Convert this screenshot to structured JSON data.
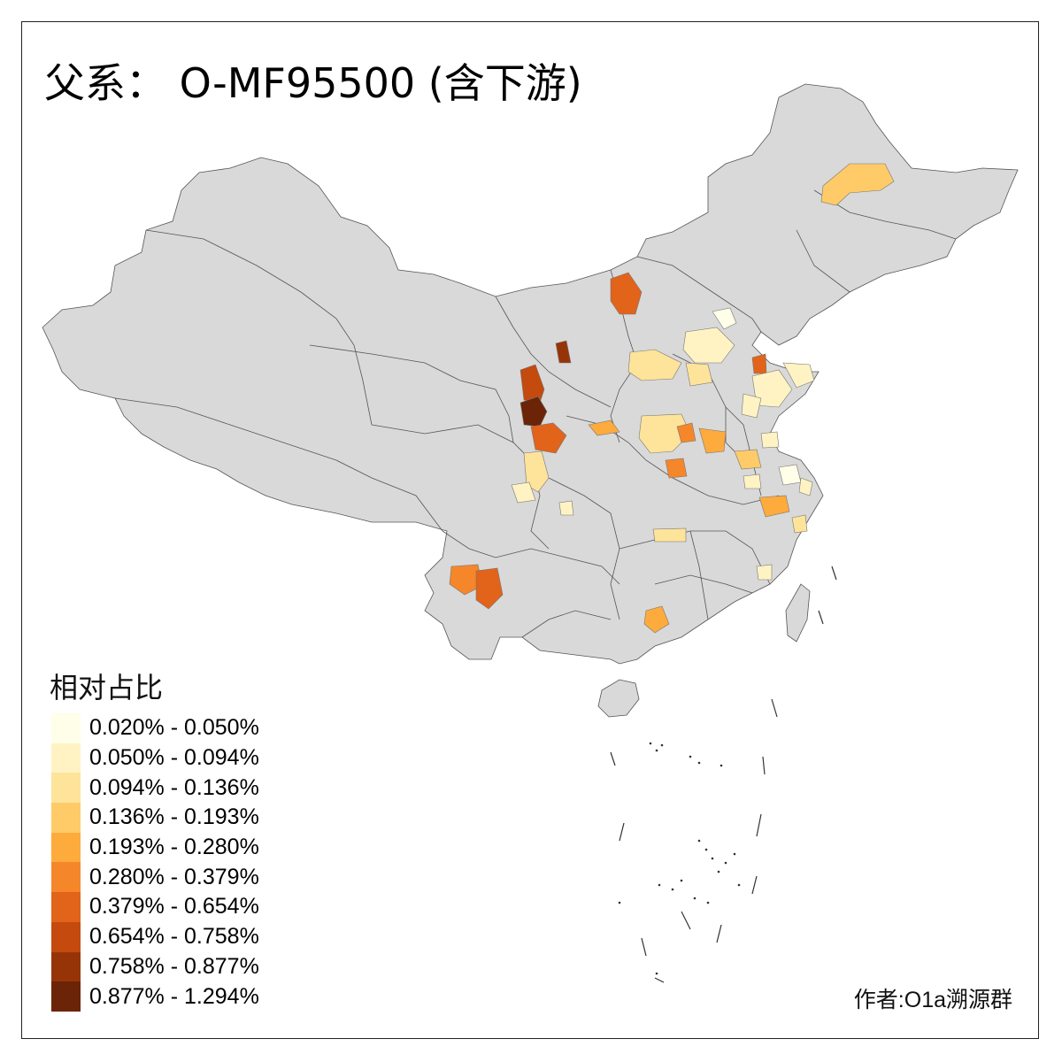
{
  "title": "父系： O-MF95500 (含下游)",
  "legend": {
    "title": "相对占比",
    "classes": [
      {
        "label": "0.020% - 0.050%",
        "color": "#fffee8"
      },
      {
        "label": "0.050% - 0.094%",
        "color": "#fff3c4"
      },
      {
        "label": "0.094% - 0.136%",
        "color": "#fee39a"
      },
      {
        "label": "0.136% - 0.193%",
        "color": "#fecb68"
      },
      {
        "label": "0.193% - 0.280%",
        "color": "#fdab3d"
      },
      {
        "label": "0.280% - 0.379%",
        "color": "#f6862a"
      },
      {
        "label": "0.379% - 0.654%",
        "color": "#e2631a"
      },
      {
        "label": "0.654% - 0.758%",
        "color": "#c44a0e"
      },
      {
        "label": "0.758% - 0.877%",
        "color": "#973407"
      },
      {
        "label": "0.877% - 1.294%",
        "color": "#6b2407"
      }
    ]
  },
  "author": "作者:O1a溯源群",
  "colors": {
    "base": "#d9d9d9",
    "border": "#555555",
    "frame": "#222222"
  }
}
